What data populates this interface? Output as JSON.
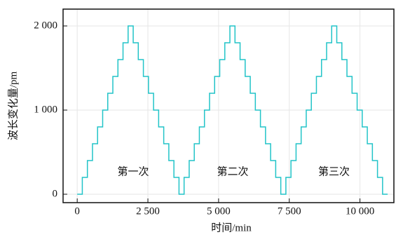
{
  "chart_data": {
    "type": "line",
    "step": "post",
    "xlabel": "时间/min",
    "ylabel": "波长变化量/pm",
    "x": [
      0,
      180,
      360,
      540,
      720,
      900,
      1080,
      1260,
      1440,
      1620,
      1800,
      1980,
      2160,
      2340,
      2520,
      2700,
      2880,
      3060,
      3240,
      3420,
      3600,
      3780,
      3960,
      4140,
      4320,
      4500,
      4680,
      4860,
      5040,
      5220,
      5400,
      5580,
      5760,
      5940,
      6120,
      6300,
      6480,
      6660,
      6840,
      7020,
      7200,
      7380,
      7560,
      7740,
      7920,
      8100,
      8280,
      8460,
      8640,
      8820,
      9000,
      9180,
      9360,
      9540,
      9720,
      9900,
      10080,
      10260,
      10440,
      10620,
      10800,
      10980
    ],
    "series": [
      {
        "color": "#22c4c8",
        "values": [
          0,
          200,
          400,
          600,
          800,
          1000,
          1200,
          1400,
          1600,
          1800,
          2000,
          1800,
          1600,
          1400,
          1200,
          1000,
          800,
          600,
          400,
          200,
          0,
          200,
          400,
          600,
          800,
          1000,
          1200,
          1400,
          1600,
          1800,
          2000,
          1800,
          1600,
          1400,
          1200,
          1000,
          800,
          600,
          400,
          200,
          0,
          200,
          400,
          600,
          800,
          1000,
          1200,
          1400,
          1600,
          1800,
          2000,
          1800,
          1600,
          1400,
          1200,
          1000,
          800,
          600,
          400,
          200,
          0,
          0
        ]
      }
    ],
    "xlim": [
      -500,
      11200
    ],
    "ylim": [
      -100,
      2200
    ],
    "xticks": [
      0,
      {
        "value": 2500,
        "label": "2 500"
      },
      {
        "value": 5000,
        "label": "5 000"
      },
      {
        "value": 7500,
        "label": "7 500"
      },
      {
        "value": 10000,
        "label": "10 000"
      }
    ],
    "yticks": [
      0,
      {
        "value": 1000,
        "label": "1 000"
      },
      {
        "value": 2000,
        "label": "2 000"
      }
    ],
    "grid": true,
    "annotations": [
      {
        "text": "第一次",
        "x": 1980,
        "y": 258
      },
      {
        "text": "第二次",
        "x": 5500,
        "y": 258
      },
      {
        "text": "第三次",
        "x": 9080,
        "y": 258
      }
    ]
  }
}
